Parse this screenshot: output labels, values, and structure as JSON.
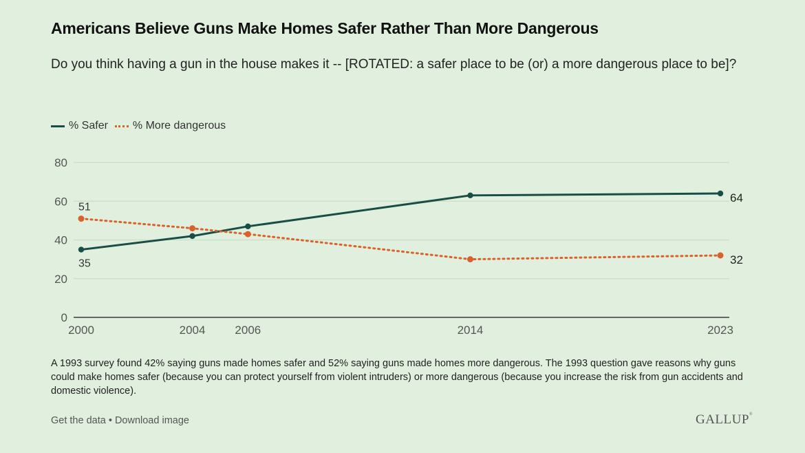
{
  "title": "Americans Believe Guns Make Homes Safer Rather Than More Dangerous",
  "subtitle": "Do you think having a gun in the house makes it -- [ROTATED: a safer place to be (or) a more dangerous place to be]?",
  "note": "A 1993 survey found 42% saying guns made homes safer and 52% saying guns made homes more dangerous. The 1993 question gave reasons why guns could make homes safer (because you can protect yourself from violent intruders) or more dangerous (because you increase the risk from gun accidents and domestic violence).",
  "footer": {
    "get_data": "Get the data",
    "separator": " • ",
    "download": "Download image",
    "brand": "GALLUP",
    "brand_mark": "®"
  },
  "colors": {
    "background": "#e1f0de",
    "safer": "#1a4d45",
    "dangerous": "#d9622b",
    "grid": "#c9dcc6",
    "axis": "#666666"
  },
  "chart_data": {
    "type": "line",
    "title": "Americans Believe Guns Make Homes Safer Rather Than More Dangerous",
    "xlabel": "",
    "ylabel": "",
    "x": [
      2000,
      2004,
      2006,
      2014,
      2023
    ],
    "x_tick_labels": [
      "2000",
      "2004",
      "2006",
      "2014",
      "2023"
    ],
    "ylim": [
      0,
      80
    ],
    "y_ticks": [
      0,
      20,
      40,
      60,
      80
    ],
    "grid": true,
    "legend_position": "top-left",
    "series": [
      {
        "name": "% Safer",
        "style": "solid",
        "values": [
          35,
          42,
          47,
          63,
          64
        ],
        "labeled_points": {
          "start": "35",
          "end": "64"
        }
      },
      {
        "name": "% More dangerous",
        "style": "dotted",
        "values": [
          51,
          46,
          43,
          30,
          32
        ],
        "labeled_points": {
          "start": "51",
          "end": "32"
        }
      }
    ]
  }
}
